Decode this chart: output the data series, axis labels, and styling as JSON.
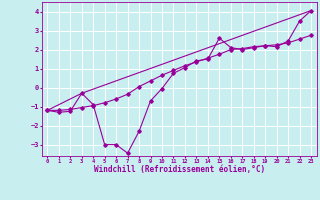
{
  "xlabel": "Windchill (Refroidissement éolien,°C)",
  "bg_color": "#c8eef0",
  "grid_color": "#ffffff",
  "line_color": "#990099",
  "marker_color": "#990099",
  "xlim": [
    -0.5,
    23.5
  ],
  "ylim": [
    -3.6,
    4.5
  ],
  "yticks": [
    -3,
    -2,
    -1,
    0,
    1,
    2,
    3,
    4
  ],
  "xticks": [
    0,
    1,
    2,
    3,
    4,
    5,
    6,
    7,
    8,
    9,
    10,
    11,
    12,
    13,
    14,
    15,
    16,
    17,
    18,
    19,
    20,
    21,
    22,
    23
  ],
  "series1_x": [
    0,
    1,
    2,
    3,
    4,
    5,
    6,
    7,
    8,
    9,
    10,
    11,
    12,
    13,
    14,
    15,
    16,
    17,
    18,
    19,
    20,
    21,
    22,
    23
  ],
  "series1_y": [
    -1.2,
    -1.3,
    -1.25,
    -0.3,
    -0.9,
    -3.0,
    -3.0,
    -3.45,
    -2.3,
    -0.7,
    -0.05,
    0.75,
    1.05,
    1.4,
    1.5,
    2.6,
    2.1,
    2.0,
    2.1,
    2.2,
    2.15,
    2.45,
    3.5,
    4.05
  ],
  "series2_x": [
    0,
    1,
    2,
    3,
    4,
    5,
    6,
    7,
    8,
    9,
    10,
    11,
    12,
    13,
    14,
    15,
    16,
    17,
    18,
    19,
    20,
    21,
    22,
    23
  ],
  "series2_y": [
    -1.2,
    -1.2,
    -1.15,
    -1.05,
    -0.95,
    -0.8,
    -0.6,
    -0.35,
    0.05,
    0.35,
    0.65,
    0.9,
    1.15,
    1.35,
    1.55,
    1.75,
    2.0,
    2.05,
    2.15,
    2.2,
    2.25,
    2.35,
    2.55,
    2.75
  ],
  "series3_x": [
    0,
    3,
    23
  ],
  "series3_y": [
    -1.2,
    -0.3,
    4.05
  ]
}
